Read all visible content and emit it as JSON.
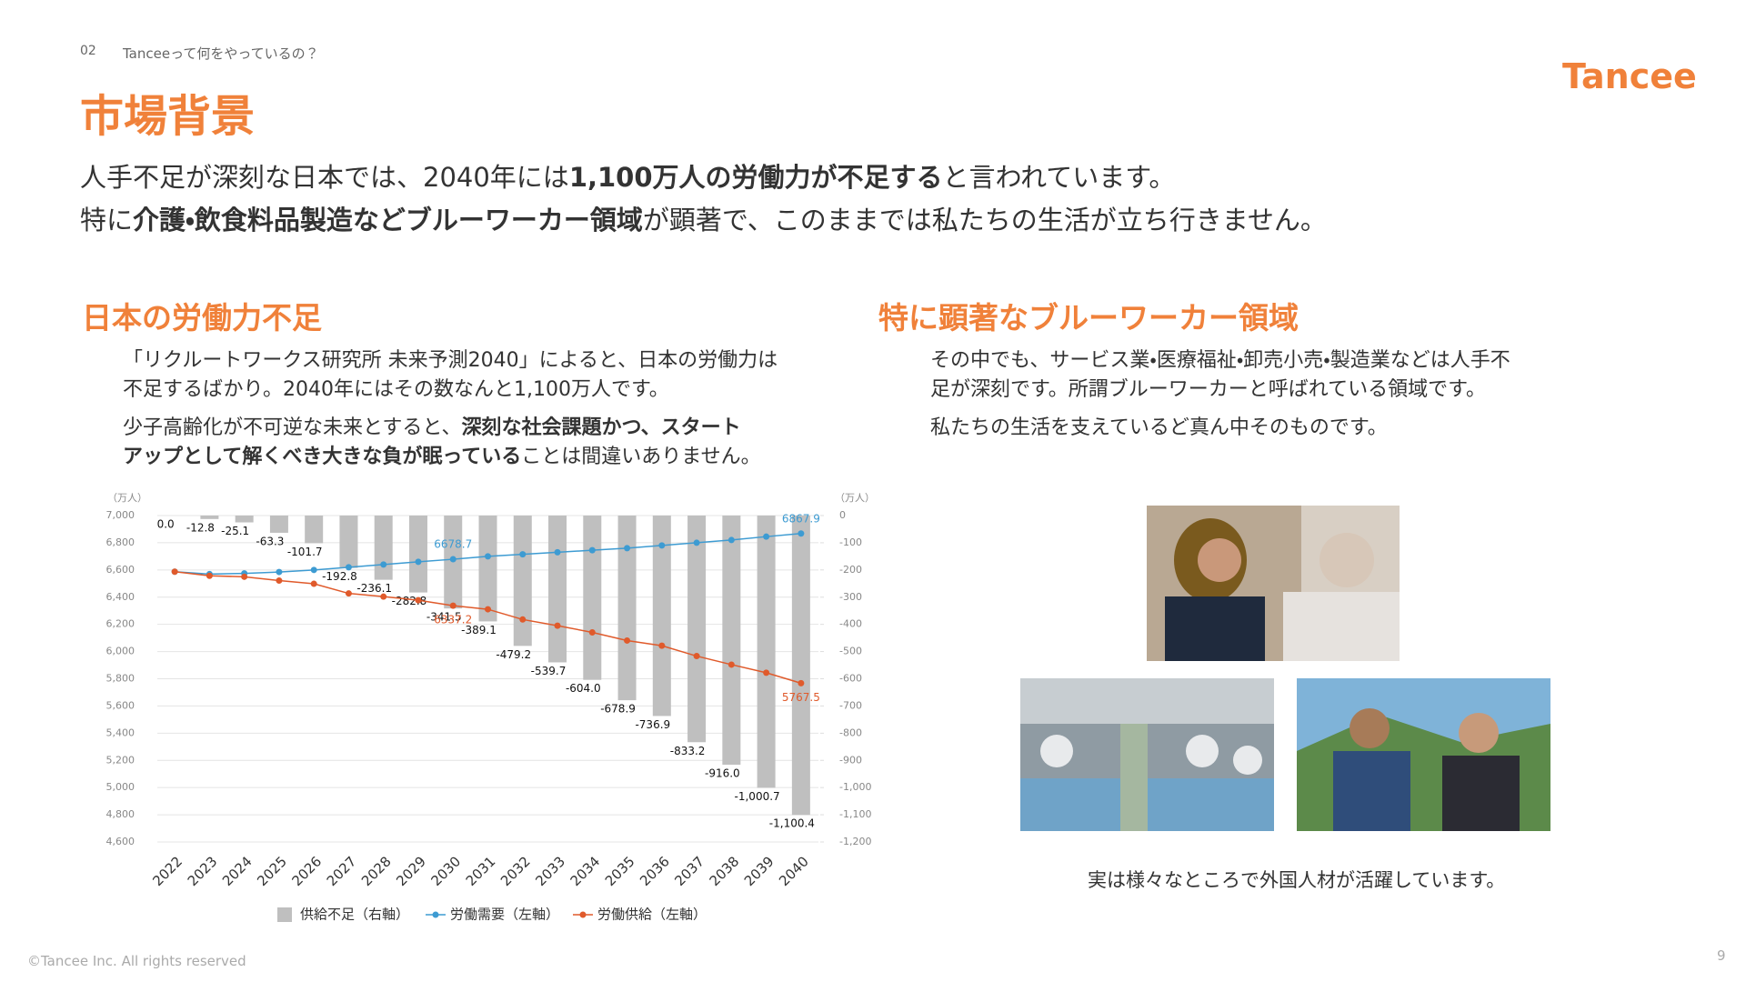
{
  "header": {
    "section_number": "02",
    "section_title": "Tanceeって何をやっているの？",
    "title": "市場背景",
    "logo": "Tancee"
  },
  "lead": [
    [
      {
        "text": "人手不足が深刻な日本では、2040年には",
        "bold": false
      },
      {
        "text": "1,100万人の労働力が不足する",
        "bold": true
      },
      {
        "text": "と言われています。",
        "bold": false
      }
    ],
    [
      {
        "text": "特に",
        "bold": false
      },
      {
        "text": "介護・飲食料品製造などブルーワーカー領域",
        "bold": true
      },
      {
        "text": "が顕著で、このままでは私たちの生活が立ち行きません。",
        "bold": false
      }
    ]
  ],
  "left": {
    "heading": "日本の労働力不足",
    "paragraphs": [
      [
        [
          {
            "text": "「リクルートワークス研究所 未来予測2040」によると、日本の労働力は",
            "bold": false
          }
        ],
        [
          {
            "text": "不足するばかり。2040年にはその数なんと1,100万人です。",
            "bold": false
          }
        ]
      ],
      [
        [
          {
            "text": "少子高齢化が不可逆な未来とすると、",
            "bold": false
          },
          {
            "text": "深刻な社会課題かつ、スタート",
            "bold": true
          }
        ],
        [
          {
            "text": "アップとして解くべき大きな負が眠っている",
            "bold": true
          },
          {
            "text": "ことは間違いありません。",
            "bold": false
          }
        ]
      ]
    ]
  },
  "right": {
    "heading": "特に顕著なブルーワーカー領域",
    "paragraphs": [
      [
        [
          {
            "text": "その中でも、サービス業・医療福祉・卸売小売・製造業などは人手不",
            "bold": false
          }
        ],
        [
          {
            "text": "足が深刻です。所謂ブルーワーカーと呼ばれている領域です。",
            "bold": false
          }
        ]
      ],
      [
        [
          {
            "text": "私たちの生活を支えているど真ん中そのものです。",
            "bold": false
          }
        ]
      ]
    ],
    "caption": "実は様々なところで外国人材が活躍しています。"
  },
  "footer": {
    "copyright": "©Tancee Inc. All rights reserved",
    "page": 9
  },
  "chart_data": {
    "type": "combo",
    "y_unit": "（万人）",
    "y2_unit": "（万人）",
    "categories": [
      "2022",
      "2023",
      "2024",
      "2025",
      "2026",
      "2027",
      "2028",
      "2029",
      "2030",
      "2031",
      "2032",
      "2033",
      "2034",
      "2035",
      "2036",
      "2037",
      "2038",
      "2039",
      "2040"
    ],
    "series": [
      {
        "name": "供給不足（右軸）",
        "type": "bar",
        "axis": "y2",
        "color": "#bfbfbf",
        "values": [
          0,
          -12.8,
          -25.1,
          -63.3,
          -101.7,
          -192.8,
          -236.1,
          -282.8,
          -341.5,
          -389.1,
          -479.2,
          -539.7,
          -604,
          -678.9,
          -736.9,
          -833.2,
          -916,
          -1000.7,
          -1100.4
        ],
        "value_labels": [
          "0.0",
          "-12.8",
          "-25.1",
          "-63.3",
          "-101.7",
          "-192.8",
          "-236.1",
          "-282.8",
          "-341.5",
          "-389.1",
          "-479.2",
          "-539.7",
          "-604.0",
          "-678.9",
          "-736.9",
          "-833.2",
          "-916.0",
          "-1,000.7",
          "-1,100.4"
        ]
      },
      {
        "name": "労働需要（左軸）",
        "type": "line",
        "axis": "y",
        "color": "#3d9bd2",
        "values": [
          6587,
          6570,
          6575,
          6585,
          6600,
          6620,
          6640,
          6660,
          6678.7,
          6700,
          6715,
          6730,
          6745,
          6760,
          6780,
          6800,
          6820,
          6845,
          6867.9
        ],
        "value_labels": [
          null,
          null,
          null,
          null,
          null,
          null,
          null,
          null,
          "6678.7",
          null,
          null,
          null,
          null,
          null,
          null,
          null,
          null,
          null,
          "6867.9"
        ]
      },
      {
        "name": "労働供給（左軸）",
        "type": "line",
        "axis": "y",
        "color": "#e05a2b",
        "values": [
          6587,
          6557.2,
          6549.9,
          6521.7,
          6498.3,
          6427.2,
          6403.9,
          6377.2,
          6337.2,
          6310.9,
          6235.8,
          6190.3,
          6141,
          6081.1,
          6043.1,
          5966.8,
          5904,
          5844.3,
          5767.5
        ],
        "value_labels": [
          null,
          null,
          null,
          null,
          null,
          null,
          null,
          null,
          "6337.2",
          null,
          null,
          null,
          null,
          null,
          null,
          null,
          null,
          null,
          "5767.5"
        ]
      }
    ],
    "ylim": [
      4600,
      7000
    ],
    "yticks": [
      {
        "value": 4600,
        "label": "4,600"
      },
      {
        "value": 4800,
        "label": "4,800"
      },
      {
        "value": 5000,
        "label": "5,000"
      },
      {
        "value": 5200,
        "label": "5,200"
      },
      {
        "value": 5400,
        "label": "5,400"
      },
      {
        "value": 5600,
        "label": "5,600"
      },
      {
        "value": 5800,
        "label": "5,800"
      },
      {
        "value": 6000,
        "label": "6,000"
      },
      {
        "value": 6200,
        "label": "6,200"
      },
      {
        "value": 6400,
        "label": "6,400"
      },
      {
        "value": 6600,
        "label": "6,600"
      },
      {
        "value": 6800,
        "label": "6,800"
      },
      {
        "value": 7000,
        "label": "7,000"
      }
    ],
    "y2lim": [
      -1200,
      0
    ],
    "y2ticks": [
      0,
      -100,
      -200,
      -300,
      -400,
      -500,
      -600,
      -700,
      -800,
      -900,
      {
        "value": -1000,
        "label": "-1,000"
      },
      {
        "value": -1100,
        "label": "-1,100"
      },
      {
        "value": -1200,
        "label": "-1,200"
      }
    ],
    "grid": true
  }
}
